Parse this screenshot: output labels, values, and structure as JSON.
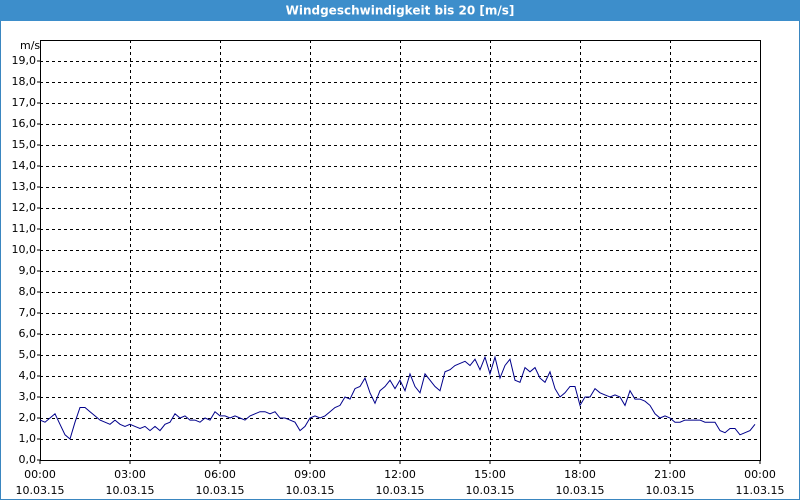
{
  "chart_data": {
    "type": "line",
    "title": "Windgeschwindigkeit bis 20 [m/s]",
    "y_unit": "m/s",
    "xlim": [
      0,
      1440
    ],
    "ylim": [
      0,
      20
    ],
    "grid": true,
    "xticks": [
      {
        "value": 0,
        "label": "00:00"
      },
      {
        "value": 180,
        "label": "03:00"
      },
      {
        "value": 360,
        "label": "06:00"
      },
      {
        "value": 540,
        "label": "09:00"
      },
      {
        "value": 720,
        "label": "12:00"
      },
      {
        "value": 900,
        "label": "15:00"
      },
      {
        "value": 1080,
        "label": "18:00"
      },
      {
        "value": 1260,
        "label": "21:00"
      },
      {
        "value": 1440,
        "label": "00:00"
      }
    ],
    "xtick_dates": [
      "10.03.15",
      "10.03.15",
      "10.03.15",
      "10.03.15",
      "10.03.15",
      "10.03.15",
      "10.03.15",
      "10.03.15",
      "11.03.15"
    ],
    "yticks": [
      {
        "value": 0,
        "label": "0,0"
      },
      {
        "value": 1,
        "label": "1,0"
      },
      {
        "value": 2,
        "label": "2,0"
      },
      {
        "value": 3,
        "label": "3,0"
      },
      {
        "value": 4,
        "label": "4,0"
      },
      {
        "value": 5,
        "label": "5,0"
      },
      {
        "value": 6,
        "label": "6,0"
      },
      {
        "value": 7,
        "label": "7,0"
      },
      {
        "value": 8,
        "label": "8,0"
      },
      {
        "value": 9,
        "label": "9,0"
      },
      {
        "value": 10,
        "label": "10,0"
      },
      {
        "value": 11,
        "label": "11,0"
      },
      {
        "value": 12,
        "label": "12,0"
      },
      {
        "value": 13,
        "label": "13,0"
      },
      {
        "value": 14,
        "label": "14,0"
      },
      {
        "value": 15,
        "label": "15,0"
      },
      {
        "value": 16,
        "label": "16,0"
      },
      {
        "value": 17,
        "label": "17,0"
      },
      {
        "value": 18,
        "label": "18,0"
      },
      {
        "value": 19,
        "label": "19,0"
      }
    ],
    "color": "#00008b",
    "x": [
      0,
      10,
      20,
      30,
      40,
      50,
      60,
      70,
      80,
      90,
      100,
      110,
      120,
      130,
      140,
      150,
      160,
      170,
      180,
      190,
      200,
      210,
      220,
      230,
      240,
      250,
      260,
      270,
      280,
      290,
      300,
      310,
      320,
      330,
      340,
      350,
      360,
      370,
      380,
      390,
      400,
      410,
      420,
      430,
      440,
      450,
      460,
      470,
      480,
      490,
      500,
      510,
      520,
      530,
      540,
      550,
      560,
      570,
      580,
      590,
      600,
      610,
      620,
      630,
      640,
      650,
      660,
      670,
      680,
      690,
      700,
      710,
      720,
      730,
      740,
      750,
      760,
      770,
      780,
      790,
      800,
      810,
      820,
      830,
      840,
      850,
      860,
      870,
      880,
      890,
      900,
      910,
      920,
      930,
      940,
      950,
      960,
      970,
      980,
      990,
      1000,
      1010,
      1020,
      1030,
      1040,
      1050,
      1060,
      1070,
      1080,
      1090,
      1100,
      1110,
      1120,
      1130,
      1140,
      1150,
      1160,
      1170,
      1180,
      1190,
      1200,
      1210,
      1220,
      1230,
      1240,
      1250,
      1260,
      1270,
      1280,
      1290,
      1300,
      1310,
      1320,
      1330,
      1340,
      1350,
      1360,
      1370,
      1380,
      1390,
      1400,
      1410,
      1420,
      1430
    ],
    "values": [
      1.9,
      1.8,
      2.0,
      2.2,
      1.7,
      1.2,
      1.0,
      1.8,
      2.5,
      2.5,
      2.3,
      2.1,
      1.9,
      1.8,
      1.7,
      1.9,
      1.7,
      1.6,
      1.7,
      1.6,
      1.5,
      1.6,
      1.4,
      1.6,
      1.4,
      1.7,
      1.8,
      2.2,
      2.0,
      2.1,
      1.9,
      1.9,
      1.8,
      2.0,
      1.9,
      2.3,
      2.1,
      2.1,
      2.0,
      2.1,
      2.0,
      1.9,
      2.1,
      2.2,
      2.3,
      2.3,
      2.2,
      2.3,
      2.0,
      2.0,
      1.9,
      1.8,
      1.4,
      1.6,
      2.0,
      2.1,
      2.0,
      2.1,
      2.3,
      2.5,
      2.6,
      3.0,
      2.9,
      3.4,
      3.5,
      3.9,
      3.2,
      2.7,
      3.3,
      3.5,
      3.8,
      3.4,
      3.8,
      3.3,
      4.1,
      3.5,
      3.2,
      4.1,
      3.8,
      3.5,
      3.3,
      4.2,
      4.3,
      4.5,
      4.6,
      4.7,
      4.5,
      4.8,
      4.3,
      4.9,
      4.1,
      4.9,
      3.9,
      4.5,
      4.8,
      3.8,
      3.7,
      4.4,
      4.2,
      4.4,
      3.9,
      3.7,
      4.2,
      3.4,
      3.0,
      3.2,
      3.5,
      3.5,
      2.6,
      3.0,
      3.0,
      3.4,
      3.2,
      3.1,
      3.0,
      3.1,
      3.0,
      2.6,
      3.3,
      2.9,
      2.9,
      2.8,
      2.6,
      2.2,
      2.0,
      2.1,
      2.0,
      1.8,
      1.8,
      1.9,
      1.9,
      1.9,
      1.9,
      1.8,
      1.8,
      1.8,
      1.4,
      1.3,
      1.5,
      1.5,
      1.2,
      1.3,
      1.4,
      1.7
    ]
  }
}
